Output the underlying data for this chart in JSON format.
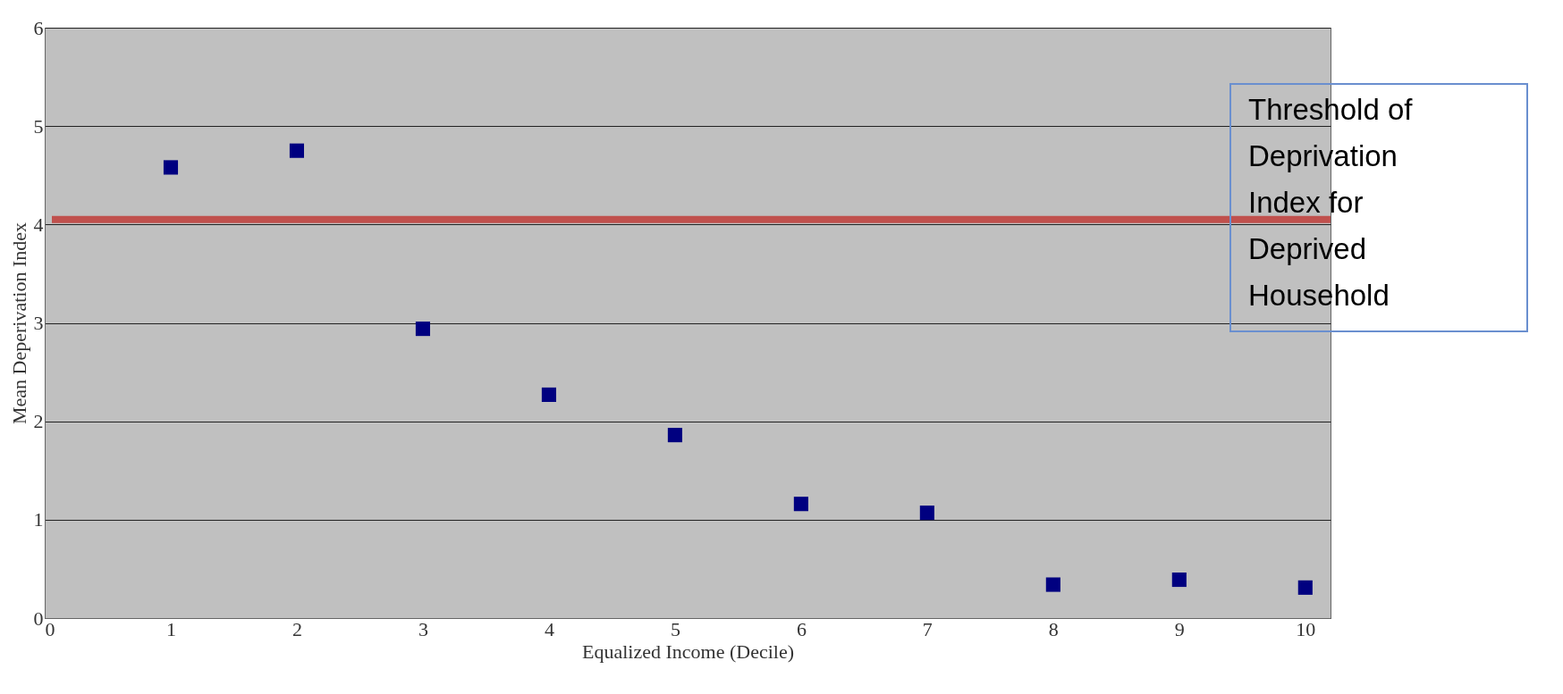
{
  "chart_data": {
    "type": "scatter",
    "xlabel": "Equalized Income (Decile)",
    "ylabel": "Mean Deperivation Index",
    "x": [
      1,
      2,
      3,
      4,
      5,
      6,
      7,
      8,
      9,
      10
    ],
    "series": [
      {
        "color": "#000080",
        "values": [
          4.58,
          4.75,
          2.94,
          2.27,
          1.86,
          1.16,
          1.07,
          0.34,
          0.39,
          0.31
        ]
      }
    ],
    "xlim": [
      0,
      10.2
    ],
    "xticks": [
      0,
      1,
      2,
      3,
      4,
      5,
      6,
      7,
      8,
      9,
      10
    ],
    "ylim": [
      0,
      6
    ],
    "yticks": [
      0,
      1,
      2,
      3,
      4,
      5,
      6
    ],
    "grid": "y",
    "marker": "square",
    "ref_lines": [
      {
        "axis": "y",
        "value": 4.05,
        "label": "Threshold of Deprivation Index for Deprived Household",
        "color": "#c0504d"
      }
    ]
  }
}
